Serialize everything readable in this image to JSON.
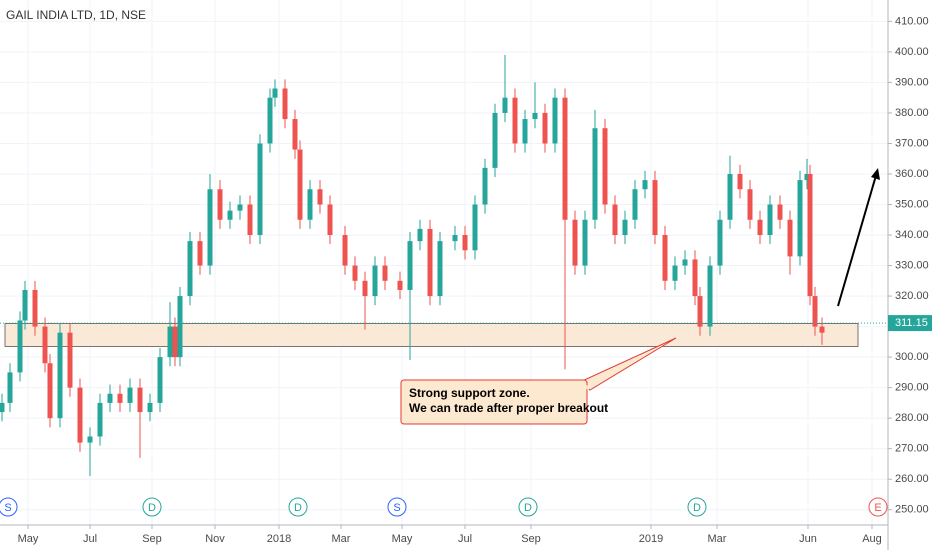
{
  "chart_data": {
    "type": "candlestick",
    "title": "GAIL INDIA LTD, 1D, NSE",
    "xlim": [
      0,
      888
    ],
    "ylim": [
      245,
      417
    ],
    "xticks": [
      {
        "value": 28,
        "label": "May"
      },
      {
        "value": 90,
        "label": "Jul"
      },
      {
        "value": 152,
        "label": "Sep"
      },
      {
        "value": 215,
        "label": "Nov"
      },
      {
        "value": 279,
        "label": "2018"
      },
      {
        "value": 341,
        "label": "Mar"
      },
      {
        "value": 402,
        "label": "May"
      },
      {
        "value": 465,
        "label": "Jul"
      },
      {
        "value": 531,
        "label": "Sep"
      },
      {
        "value": 651,
        "label": "2019"
      },
      {
        "value": 717,
        "label": "Mar"
      },
      {
        "value": 808,
        "label": "Jun"
      },
      {
        "value": 872,
        "label": "Aug"
      }
    ],
    "yticks": [
      {
        "value": 250,
        "label": "250.00"
      },
      {
        "value": 260,
        "label": "260.00"
      },
      {
        "value": 270,
        "label": "270.00"
      },
      {
        "value": 280,
        "label": "280.00"
      },
      {
        "value": 290,
        "label": "290.00"
      },
      {
        "value": 300,
        "label": "300.00"
      },
      {
        "value": 310,
        "label": "310.00"
      },
      {
        "value": 320,
        "label": "320.00"
      },
      {
        "value": 330,
        "label": "330.00"
      },
      {
        "value": 340,
        "label": "340.00"
      },
      {
        "value": 350,
        "label": "350.00"
      },
      {
        "value": 360,
        "label": "360.00"
      },
      {
        "value": 370,
        "label": "370.00"
      },
      {
        "value": 380,
        "label": "380.00"
      },
      {
        "value": 390,
        "label": "390.00"
      },
      {
        "value": 400,
        "label": "400.00"
      },
      {
        "value": 410,
        "label": "410.00"
      }
    ],
    "up_color": "#26a69a",
    "down_color": "#ef5350",
    "x": [
      2,
      10,
      20,
      25,
      35,
      45,
      50,
      60,
      70,
      80,
      90,
      100,
      110,
      120,
      130,
      140,
      150,
      160,
      170,
      175,
      180,
      190,
      200,
      210,
      220,
      230,
      240,
      250,
      260,
      270,
      275,
      285,
      295,
      300,
      310,
      320,
      330,
      345,
      355,
      365,
      375,
      385,
      400,
      410,
      420,
      430,
      440,
      455,
      465,
      475,
      485,
      495,
      505,
      515,
      525,
      535,
      545,
      555,
      565,
      575,
      585,
      595,
      605,
      615,
      625,
      635,
      645,
      655,
      665,
      675,
      685,
      695,
      700,
      710,
      720,
      730,
      740,
      750,
      760,
      770,
      780,
      790,
      800,
      807,
      810,
      815,
      822
    ],
    "open": [
      282,
      285,
      295,
      312,
      322,
      310,
      298,
      280,
      308,
      290,
      272,
      274,
      285,
      288,
      285,
      290,
      282,
      285,
      300,
      310,
      300,
      320,
      338,
      330,
      355,
      345,
      348,
      350,
      340,
      370,
      385,
      388,
      378,
      368,
      345,
      355,
      350,
      340,
      330,
      325,
      320,
      330,
      325,
      322,
      338,
      342,
      320,
      338,
      340,
      335,
      350,
      362,
      380,
      385,
      370,
      378,
      380,
      370,
      385,
      345,
      330,
      345,
      375,
      350,
      340,
      345,
      355,
      358,
      340,
      325,
      330,
      332,
      320,
      310,
      330,
      345,
      360,
      355,
      345,
      340,
      350,
      345,
      333,
      358,
      360,
      320,
      310
    ],
    "high": [
      288,
      298,
      315,
      325,
      325,
      313,
      301,
      311,
      311,
      293,
      277,
      288,
      291,
      291,
      293,
      293,
      288,
      303,
      318,
      313,
      323,
      341,
      341,
      360,
      358,
      351,
      353,
      353,
      373,
      388,
      391,
      391,
      381,
      371,
      358,
      358,
      353,
      343,
      333,
      328,
      333,
      333,
      328,
      341,
      345,
      345,
      341,
      343,
      343,
      353,
      365,
      383,
      399,
      388,
      381,
      390,
      383,
      388,
      388,
      348,
      348,
      381,
      378,
      353,
      348,
      358,
      361,
      361,
      343,
      333,
      335,
      335,
      323,
      333,
      348,
      366,
      363,
      358,
      348,
      353,
      353,
      348,
      361,
      365,
      363,
      323,
      313
    ],
    "low": [
      279,
      282,
      292,
      309,
      307,
      295,
      277,
      277,
      287,
      269,
      261,
      271,
      282,
      282,
      282,
      267,
      279,
      282,
      297,
      297,
      297,
      317,
      327,
      327,
      342,
      342,
      345,
      337,
      337,
      367,
      382,
      375,
      365,
      342,
      342,
      347,
      337,
      327,
      322,
      309,
      317,
      322,
      319,
      299,
      335,
      317,
      317,
      335,
      332,
      332,
      347,
      359,
      377,
      367,
      367,
      375,
      367,
      367,
      296,
      327,
      327,
      342,
      347,
      337,
      337,
      342,
      352,
      337,
      322,
      322,
      327,
      317,
      307,
      307,
      327,
      342,
      352,
      342,
      337,
      337,
      342,
      327,
      330,
      355,
      317,
      307,
      304
    ],
    "close": [
      285,
      295,
      312,
      322,
      310,
      298,
      280,
      308,
      290,
      272,
      274,
      285,
      288,
      285,
      290,
      282,
      285,
      300,
      310,
      300,
      320,
      338,
      330,
      355,
      345,
      348,
      350,
      340,
      370,
      385,
      388,
      378,
      368,
      345,
      355,
      350,
      340,
      330,
      325,
      320,
      330,
      325,
      322,
      338,
      342,
      320,
      338,
      340,
      335,
      350,
      362,
      380,
      385,
      370,
      378,
      380,
      370,
      385,
      345,
      330,
      345,
      375,
      350,
      340,
      345,
      355,
      358,
      340,
      325,
      330,
      332,
      320,
      310,
      330,
      345,
      360,
      355,
      345,
      340,
      350,
      345,
      333,
      358,
      360,
      320,
      310,
      308
    ],
    "last_price": 311.15,
    "zone": [
      303.5,
      311
    ],
    "annotation": [
      "Strong support zone.",
      "We can trade after proper breakout"
    ],
    "events": [
      {
        "label": "S",
        "x": 8
      },
      {
        "label": "D",
        "x": 152
      },
      {
        "label": "D",
        "x": 298
      },
      {
        "label": "S",
        "x": 397
      },
      {
        "label": "D",
        "x": 528
      },
      {
        "label": "D",
        "x": 697
      },
      {
        "label": "E",
        "x": 878
      }
    ]
  }
}
